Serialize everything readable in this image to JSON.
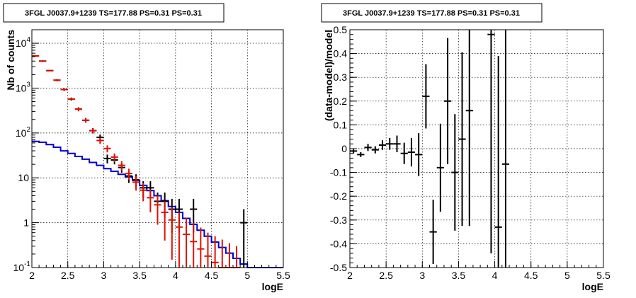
{
  "chart_data": [
    {
      "type": "scatter",
      "title": "3FGL J0037.9+1239 TS=177.88 PS=0.31 PS=0.31",
      "xlabel": "logE",
      "ylabel": "Nb of counts",
      "xlim": [
        2,
        5.5
      ],
      "ylim": [
        0.1,
        20000
      ],
      "yscale": "log",
      "grid": true,
      "x_ticks": [
        "2",
        "2.5",
        "3",
        "3.5",
        "4",
        "4.5",
        "5",
        "5.5"
      ],
      "y_ticks": [
        {
          "v": 0.1,
          "label": "10",
          "exp": "-1"
        },
        {
          "v": 1,
          "label": "1",
          "exp": ""
        },
        {
          "v": 10,
          "label": "10",
          "exp": ""
        },
        {
          "v": 100,
          "label": "10",
          "exp": "2"
        },
        {
          "v": 1000,
          "label": "10",
          "exp": "3"
        },
        {
          "v": 10000,
          "label": "10",
          "exp": "4"
        }
      ],
      "series": [
        {
          "color": "#000000",
          "style": "errorbars",
          "points": [
            {
              "x": 2.05,
              "y": 5200,
              "lo": 5050,
              "hi": 5350
            },
            {
              "x": 2.15,
              "y": 4000,
              "lo": 3870,
              "hi": 4130
            },
            {
              "x": 2.25,
              "y": 2450,
              "lo": 2350,
              "hi": 2550
            },
            {
              "x": 2.35,
              "y": 1500,
              "lo": 1420,
              "hi": 1580
            },
            {
              "x": 2.45,
              "y": 930,
              "lo": 870,
              "hi": 990
            },
            {
              "x": 2.55,
              "y": 570,
              "lo": 525,
              "hi": 615
            },
            {
              "x": 2.65,
              "y": 340,
              "lo": 305,
              "hi": 375
            },
            {
              "x": 2.75,
              "y": 192,
              "lo": 170,
              "hi": 215
            },
            {
              "x": 2.85,
              "y": 113,
              "lo": 98,
              "hi": 128
            },
            {
              "x": 2.95,
              "y": 80,
              "lo": 68,
              "hi": 92
            },
            {
              "x": 3.05,
              "y": 27,
              "lo": 21,
              "hi": 33
            },
            {
              "x": 3.15,
              "y": 25,
              "lo": 20,
              "hi": 30
            },
            {
              "x": 3.25,
              "y": 17,
              "lo": 13,
              "hi": 21
            },
            {
              "x": 3.35,
              "y": 11,
              "lo": 7.7,
              "hi": 14.3
            },
            {
              "x": 3.45,
              "y": 9,
              "lo": 6,
              "hi": 12
            },
            {
              "x": 3.55,
              "y": 6,
              "lo": 3.6,
              "hi": 8.4
            },
            {
              "x": 3.65,
              "y": 6,
              "lo": 3.6,
              "hi": 8.4
            },
            {
              "x": 3.75,
              "y": 3,
              "lo": 1.3,
              "hi": 4.7
            },
            {
              "x": 3.85,
              "y": 3,
              "lo": 1.3,
              "hi": 4.7
            },
            {
              "x": 3.95,
              "y": 2,
              "lo": 0.6,
              "hi": 3.4
            },
            {
              "x": 4.05,
              "y": 2,
              "lo": 0.6,
              "hi": 3.4
            },
            {
              "x": 4.25,
              "y": 2,
              "lo": 0.6,
              "hi": 3.4
            },
            {
              "x": 4.95,
              "y": 1,
              "lo": 0.1,
              "hi": 2.0
            }
          ]
        },
        {
          "color": "#dd1100",
          "style": "errorbars",
          "points": [
            {
              "x": 2.05,
              "y": 5200,
              "lo": 5050,
              "hi": 5350
            },
            {
              "x": 2.15,
              "y": 4000,
              "lo": 3870,
              "hi": 4130
            },
            {
              "x": 2.25,
              "y": 2450,
              "lo": 2350,
              "hi": 2550
            },
            {
              "x": 2.35,
              "y": 1500,
              "lo": 1420,
              "hi": 1580
            },
            {
              "x": 2.45,
              "y": 930,
              "lo": 870,
              "hi": 990
            },
            {
              "x": 2.55,
              "y": 570,
              "lo": 525,
              "hi": 615
            },
            {
              "x": 2.65,
              "y": 340,
              "lo": 305,
              "hi": 375
            },
            {
              "x": 2.75,
              "y": 192,
              "lo": 170,
              "hi": 215
            },
            {
              "x": 2.85,
              "y": 112,
              "lo": 97,
              "hi": 127
            },
            {
              "x": 2.95,
              "y": 68,
              "lo": 57,
              "hi": 79
            },
            {
              "x": 3.05,
              "y": 45,
              "lo": 37,
              "hi": 53
            },
            {
              "x": 3.15,
              "y": 29,
              "lo": 23,
              "hi": 35
            },
            {
              "x": 3.25,
              "y": 19,
              "lo": 14.5,
              "hi": 23.5
            },
            {
              "x": 3.35,
              "y": 12.5,
              "lo": 9,
              "hi": 16
            },
            {
              "x": 3.45,
              "y": 8,
              "lo": 5.2,
              "hi": 10.8
            },
            {
              "x": 3.55,
              "y": 5.3,
              "lo": 3.0,
              "hi": 7.6
            },
            {
              "x": 3.65,
              "y": 3.6,
              "lo": 1.7,
              "hi": 5.5
            },
            {
              "x": 3.75,
              "y": 2.5,
              "lo": 0.9,
              "hi": 4.1
            },
            {
              "x": 3.85,
              "y": 1.7,
              "lo": 0.4,
              "hi": 3.0
            },
            {
              "x": 3.95,
              "y": 1.15,
              "lo": 0.15,
              "hi": 2.2
            },
            {
              "x": 4.05,
              "y": 0.8,
              "lo": 0.1,
              "hi": 1.7
            },
            {
              "x": 4.15,
              "y": 0.55,
              "lo": 0.1,
              "hi": 1.3
            },
            {
              "x": 4.25,
              "y": 0.38,
              "lo": 0.1,
              "hi": 1.0
            },
            {
              "x": 4.35,
              "y": 0.26,
              "lo": 0.1,
              "hi": 0.78
            },
            {
              "x": 4.45,
              "y": 0.18,
              "lo": 0.1,
              "hi": 0.6
            },
            {
              "x": 4.55,
              "y": 0.13,
              "lo": 0.1,
              "hi": 0.5
            },
            {
              "x": 4.65,
              "y": 0.1,
              "lo": 0.1,
              "hi": 0.42
            },
            {
              "x": 4.75,
              "y": 0.1,
              "lo": 0.1,
              "hi": 0.35
            },
            {
              "x": 4.85,
              "y": 0.1,
              "lo": 0.1,
              "hi": 0.3
            }
          ]
        },
        {
          "color": "#0000cc",
          "style": "step",
          "edges": [
            2.0,
            2.1,
            2.2,
            2.3,
            2.4,
            2.5,
            2.6,
            2.7,
            2.8,
            2.9,
            3.0,
            3.1,
            3.2,
            3.3,
            3.4,
            3.5,
            3.6,
            3.7,
            3.8,
            3.9,
            4.0,
            4.1,
            4.2,
            4.3,
            4.4,
            4.5,
            4.6,
            4.7,
            4.8,
            4.9,
            5.0,
            5.1,
            5.2,
            5.3,
            5.4,
            5.5
          ],
          "values": [
            65,
            62,
            55,
            48,
            40,
            35,
            30,
            26,
            22,
            19,
            16,
            14,
            12,
            10.5,
            8.8,
            6.8,
            5.2,
            4.0,
            3.1,
            2.3,
            1.7,
            1.25,
            0.92,
            0.68,
            0.5,
            0.37,
            0.28,
            0.21,
            0.16,
            0.12,
            0.1,
            0.1,
            0.1,
            0.1,
            0.1
          ]
        }
      ]
    },
    {
      "type": "scatter",
      "title": "3FGL J0037.9+1239 TS=177.88 PS=0.31 PS=0.31",
      "xlabel": "logE",
      "ylabel": "(data-model)/model",
      "xlim": [
        2,
        5.5
      ],
      "ylim": [
        -0.5,
        0.5
      ],
      "grid": true,
      "x_ticks": [
        "2",
        "2.5",
        "3",
        "3.5",
        "4",
        "4.5",
        "5",
        "5.5"
      ],
      "y_ticks": [
        "-0.5",
        "-0.4",
        "-0.3",
        "-0.2",
        "-0.1",
        "0",
        "0.1",
        "0.2",
        "0.3",
        "0.4",
        "0.5"
      ],
      "series": [
        {
          "color": "#000000",
          "style": "errorbars",
          "points": [
            {
              "x": 2.05,
              "y": -0.01,
              "lo": -0.02,
              "hi": 0.0
            },
            {
              "x": 2.15,
              "y": -0.025,
              "lo": -0.035,
              "hi": -0.015
            },
            {
              "x": 2.25,
              "y": 0.005,
              "lo": -0.01,
              "hi": 0.02
            },
            {
              "x": 2.35,
              "y": -0.005,
              "lo": -0.02,
              "hi": 0.01
            },
            {
              "x": 2.45,
              "y": 0.015,
              "lo": -0.005,
              "hi": 0.035
            },
            {
              "x": 2.55,
              "y": 0.02,
              "lo": -0.005,
              "hi": 0.045
            },
            {
              "x": 2.65,
              "y": 0.02,
              "lo": -0.015,
              "hi": 0.055
            },
            {
              "x": 2.75,
              "y": -0.02,
              "lo": -0.065,
              "hi": 0.025
            },
            {
              "x": 2.85,
              "y": -0.015,
              "lo": -0.075,
              "hi": 0.045
            },
            {
              "x": 2.95,
              "y": -0.025,
              "lo": -0.115,
              "hi": 0.065
            },
            {
              "x": 3.05,
              "y": 0.22,
              "lo": 0.085,
              "hi": 0.355
            },
            {
              "x": 3.15,
              "y": -0.35,
              "lo": -0.485,
              "hi": -0.215
            },
            {
              "x": 3.25,
              "y": -0.08,
              "lo": -0.265,
              "hi": 0.105
            },
            {
              "x": 3.35,
              "y": 0.2,
              "lo": -0.065,
              "hi": 0.465
            },
            {
              "x": 3.45,
              "y": -0.1,
              "lo": -0.345,
              "hi": 0.145
            },
            {
              "x": 3.55,
              "y": 0.04,
              "lo": -0.325,
              "hi": 0.405
            },
            {
              "x": 3.65,
              "y": 0.16,
              "lo": -0.325,
              "hi": 0.5
            },
            {
              "x": 3.95,
              "y": 0.48,
              "lo": -0.44,
              "hi": 0.5
            },
            {
              "x": 4.05,
              "y": -0.33,
              "lo": -0.5,
              "hi": 0.39
            },
            {
              "x": 4.15,
              "y": -0.065,
              "lo": -0.5,
              "hi": 0.5
            }
          ]
        }
      ]
    }
  ]
}
